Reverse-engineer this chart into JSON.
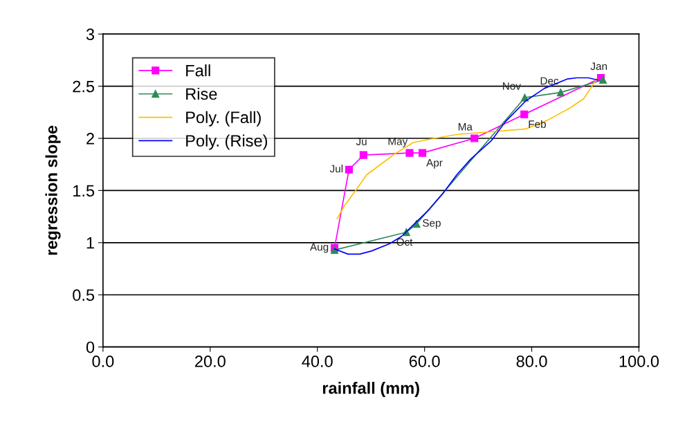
{
  "chart_data": {
    "type": "line",
    "xlabel": "rainfall (mm)",
    "ylabel": "regression slope",
    "xlim": [
      0,
      100
    ],
    "ylim": [
      0,
      3
    ],
    "xticks": [
      {
        "value": 0,
        "label": "0.0"
      },
      {
        "value": 20,
        "label": "20.0"
      },
      {
        "value": 40,
        "label": "40.0"
      },
      {
        "value": 60,
        "label": "60.0"
      },
      {
        "value": 80,
        "label": "80.0"
      },
      {
        "value": 100,
        "label": "100.0"
      }
    ],
    "yticks": [
      0,
      0.5,
      1,
      1.5,
      2,
      2.5,
      3
    ],
    "grid": "y",
    "legend": "top left",
    "series": [
      {
        "name": "Fall",
        "color": "#ff00ff",
        "marker": "square",
        "x": [
          92.9,
          78.6,
          69.3,
          59.6,
          57.2,
          48.6,
          45.9,
          43.2
        ],
        "values": [
          2.58,
          2.23,
          2.0,
          1.86,
          1.86,
          1.84,
          1.7,
          0.95
        ]
      },
      {
        "name": "Rise",
        "color": "#2e8b57",
        "marker": "triangle",
        "x": [
          43.2,
          56.6,
          58.5,
          78.7,
          85.4,
          93.3
        ],
        "values": [
          0.93,
          1.1,
          1.18,
          2.39,
          2.44,
          2.56
        ]
      },
      {
        "name": "Poly. (Fall)",
        "color": "#ffc000",
        "marker": "none",
        "x": [
          43.7,
          45.0,
          47.0,
          49.2,
          51.8,
          54.4,
          57.9,
          61.8,
          66.4,
          71.6,
          78.9,
          82.8,
          87.1,
          89.7,
          91.0,
          92.1
        ],
        "values": [
          1.23,
          1.35,
          1.49,
          1.65,
          1.75,
          1.85,
          1.96,
          2.0,
          2.04,
          2.06,
          2.09,
          2.17,
          2.29,
          2.38,
          2.48,
          2.57
        ]
      },
      {
        "name": "Poly. (Rise)",
        "color": "#0000ff",
        "marker": "none",
        "x": [
          43.2,
          45.7,
          47.9,
          50.1,
          53.5,
          55.7,
          58.3,
          60.9,
          63.4,
          66.0,
          68.6,
          72.5,
          75.1,
          78.9,
          82.4,
          86.7,
          88.4,
          90.6,
          92.2
        ],
        "values": [
          0.94,
          0.89,
          0.89,
          0.92,
          0.99,
          1.06,
          1.19,
          1.32,
          1.47,
          1.65,
          1.8,
          1.98,
          2.16,
          2.36,
          2.48,
          2.57,
          2.58,
          2.58,
          2.56
        ]
      }
    ],
    "annotations": [
      {
        "text": "Jan",
        "x": 92.9,
        "y": 2.58
      },
      {
        "text": "Feb",
        "x": 78.6,
        "y": 2.23
      },
      {
        "text": "Ma",
        "x": 69.3,
        "y": 2.0
      },
      {
        "text": "Apr",
        "x": 59.6,
        "y": 1.86
      },
      {
        "text": "May",
        "x": 57.2,
        "y": 1.86
      },
      {
        "text": "Ju",
        "x": 48.6,
        "y": 1.84
      },
      {
        "text": "Jul",
        "x": 45.9,
        "y": 1.7
      },
      {
        "text": "Aug",
        "x": 43.2,
        "y": 0.95
      },
      {
        "text": "Oct",
        "x": 56.6,
        "y": 1.1
      },
      {
        "text": "Sep",
        "x": 58.5,
        "y": 1.18
      },
      {
        "text": "Nov",
        "x": 78.7,
        "y": 2.39
      },
      {
        "text": "Dec",
        "x": 85.4,
        "y": 2.44
      }
    ]
  }
}
